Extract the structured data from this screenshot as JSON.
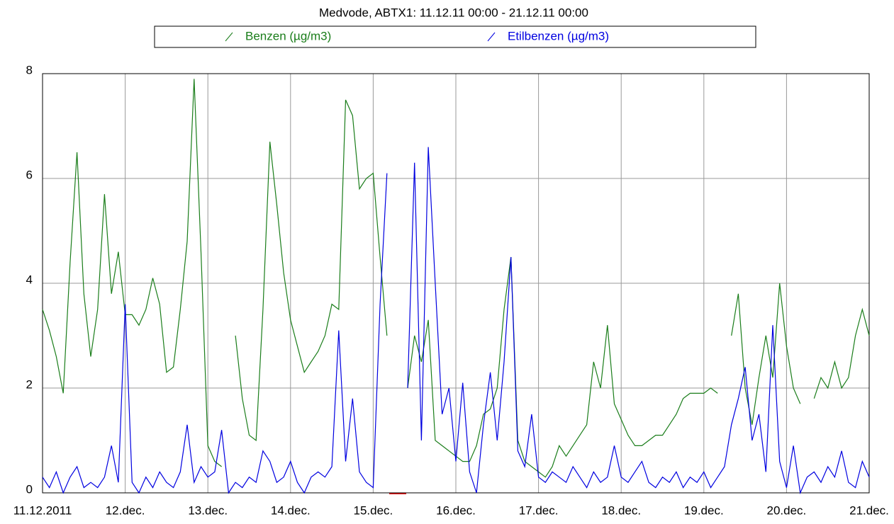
{
  "chart_data": {
    "type": "line",
    "title": "Medvode, ABTX1: 11.12.11 00:00 - 21.12.11 00:00",
    "categories": [
      "11.12.2011",
      null,
      null,
      null,
      null,
      null,
      null,
      null,
      null,
      null,
      null,
      null,
      "12.dec.",
      null,
      null,
      null,
      null,
      null,
      null,
      null,
      null,
      null,
      null,
      null,
      "13.dec.",
      null,
      null,
      null,
      null,
      null,
      null,
      null,
      null,
      null,
      null,
      null,
      "14.dec.",
      null,
      null,
      null,
      null,
      null,
      null,
      null,
      null,
      null,
      null,
      null,
      "15.dec.",
      null,
      null,
      null,
      null,
      null,
      null,
      null,
      null,
      null,
      null,
      null,
      "16.dec.",
      null,
      null,
      null,
      null,
      null,
      null,
      null,
      null,
      null,
      null,
      null,
      "17.dec.",
      null,
      null,
      null,
      null,
      null,
      null,
      null,
      null,
      null,
      null,
      null,
      "18.dec.",
      null,
      null,
      null,
      null,
      null,
      null,
      null,
      null,
      null,
      null,
      null,
      "19.dec.",
      null,
      null,
      null,
      null,
      null,
      null,
      null,
      null,
      null,
      null,
      null,
      "20.dec.",
      null,
      null,
      null,
      null,
      null,
      null,
      null,
      null,
      null,
      null,
      null,
      "21.dec."
    ],
    "series": [
      {
        "name": "Benzen (µg/m3)",
        "color": "#1a7d1a",
        "values": [
          3.5,
          3.1,
          2.6,
          1.9,
          4.4,
          6.5,
          3.8,
          2.6,
          3.5,
          5.7,
          3.8,
          4.6,
          3.4,
          3.4,
          3.2,
          3.5,
          4.1,
          3.6,
          2.3,
          2.4,
          3.5,
          4.8,
          7.9,
          4.6,
          0.9,
          0.6,
          0.5,
          null,
          3.0,
          1.8,
          1.1,
          1.0,
          3.5,
          6.7,
          5.5,
          4.2,
          3.3,
          2.8,
          2.3,
          2.5,
          2.7,
          3.0,
          3.6,
          3.5,
          7.5,
          7.2,
          5.8,
          6.0,
          6.1,
          4.5,
          3.0,
          null,
          null,
          2.0,
          3.0,
          2.5,
          3.3,
          1.0,
          0.9,
          0.8,
          0.7,
          0.6,
          0.6,
          0.9,
          1.5,
          1.6,
          2.0,
          3.5,
          4.5,
          1.0,
          0.6,
          0.5,
          0.4,
          0.3,
          0.5,
          0.9,
          0.7,
          0.9,
          1.1,
          1.3,
          2.5,
          2.0,
          3.2,
          1.7,
          1.4,
          1.1,
          0.9,
          0.9,
          1.0,
          1.1,
          1.1,
          1.3,
          1.5,
          1.8,
          1.9,
          1.9,
          1.9,
          2.0,
          1.9,
          null,
          3.0,
          3.8,
          2.0,
          1.3,
          2.2,
          3.0,
          2.2,
          4.0,
          2.8,
          2.0,
          1.7,
          null,
          1.8,
          2.2,
          2.0,
          2.5,
          2.0,
          2.2,
          3.0,
          3.5,
          3.0
        ]
      },
      {
        "name": "Etilbenzen (µg/m3)",
        "color": "#0000e0",
        "values": [
          0.3,
          0.1,
          0.4,
          0.0,
          0.3,
          0.5,
          0.1,
          0.2,
          0.1,
          0.3,
          0.9,
          0.2,
          3.6,
          0.2,
          0.0,
          0.3,
          0.1,
          0.4,
          0.2,
          0.1,
          0.4,
          1.3,
          0.2,
          0.5,
          0.3,
          0.4,
          1.2,
          0.0,
          0.2,
          0.1,
          0.3,
          0.2,
          0.8,
          0.6,
          0.2,
          0.3,
          0.6,
          0.2,
          0.0,
          0.3,
          0.4,
          0.3,
          0.5,
          3.1,
          0.6,
          1.8,
          0.4,
          0.2,
          0.1,
          3.6,
          6.1,
          null,
          null,
          2.0,
          6.3,
          1.0,
          6.6,
          4.0,
          1.5,
          2.0,
          0.6,
          2.1,
          0.4,
          0.0,
          1.3,
          2.3,
          1.0,
          2.5,
          4.5,
          0.8,
          0.5,
          1.5,
          0.3,
          0.2,
          0.4,
          0.3,
          0.2,
          0.5,
          0.3,
          0.1,
          0.4,
          0.2,
          0.3,
          0.9,
          0.3,
          0.2,
          0.4,
          0.6,
          0.2,
          0.1,
          0.3,
          0.2,
          0.4,
          0.1,
          0.3,
          0.2,
          0.4,
          0.1,
          0.3,
          0.5,
          1.3,
          1.8,
          2.4,
          1.0,
          1.5,
          0.4,
          3.2,
          0.6,
          0.1,
          0.9,
          0.0,
          0.3,
          0.4,
          0.2,
          0.5,
          0.3,
          0.8,
          0.2,
          0.1,
          0.6,
          0.3
        ]
      }
    ],
    "ylim": [
      0,
      8
    ],
    "yticks": [
      0,
      2,
      4,
      6,
      8
    ],
    "grid": true
  }
}
